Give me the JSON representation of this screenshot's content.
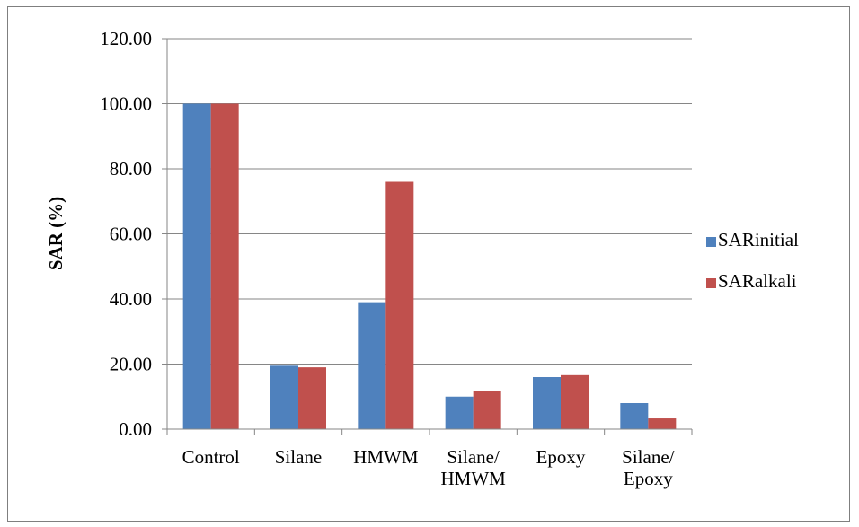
{
  "chart_data": {
    "type": "bar",
    "title": "",
    "xlabel": "",
    "ylabel": "SAR (%)",
    "ylim": [
      0,
      120
    ],
    "ytick_step": 20,
    "ytick_labels": [
      "0.00",
      "20.00",
      "40.00",
      "60.00",
      "80.00",
      "100.00",
      "120.00"
    ],
    "categories": [
      [
        "Control"
      ],
      [
        "Silane"
      ],
      [
        "HMWM"
      ],
      [
        "Silane/",
        "HMWM"
      ],
      [
        "Epoxy"
      ],
      [
        "Silane/",
        "Epoxy"
      ]
    ],
    "series": [
      {
        "name": "SARinitial",
        "color": "#4F81BD",
        "values": [
          100,
          19.5,
          39,
          10,
          16,
          8
        ]
      },
      {
        "name": "SARalkali",
        "color": "#C0504D",
        "values": [
          100,
          19,
          76,
          11.8,
          16.6,
          3.3
        ]
      }
    ],
    "grid": true,
    "legend_position": "right"
  }
}
